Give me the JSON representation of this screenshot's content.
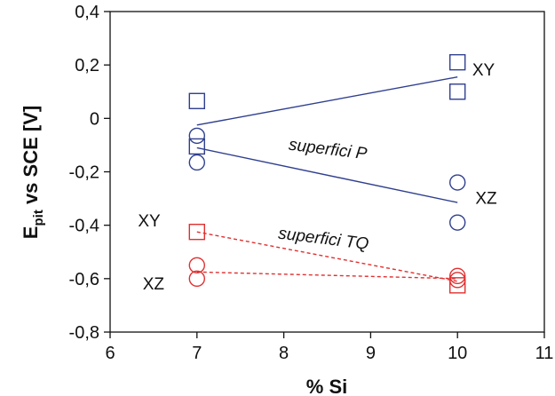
{
  "chart_data": {
    "type": "scatter",
    "title": "",
    "xlabel": "% Si",
    "ylabel_main": "E",
    "ylabel_sub": "pit",
    "ylabel_rest": " vs SCE [V]",
    "xlim": [
      6,
      11
    ],
    "ylim": [
      -0.8,
      0.4
    ],
    "xticks": [
      6,
      7,
      8,
      9,
      10,
      11
    ],
    "xtick_labels": [
      "6",
      "7",
      "8",
      "9",
      "10",
      "11"
    ],
    "yticks": [
      -0.8,
      -0.6,
      -0.4,
      -0.2,
      0,
      0.2,
      0.4
    ],
    "ytick_labels": [
      "-0,8",
      "-0,6",
      "-0,4",
      "-0,2",
      "0",
      "0,2",
      "0,4"
    ],
    "grid": false,
    "colors": {
      "blue": "#2f3f8f",
      "red": "#e03030"
    },
    "series": [
      {
        "color": "blue",
        "marker": "square",
        "x": [
          7,
          7,
          10,
          10
        ],
        "y": [
          0.065,
          -0.105,
          0.21,
          0.1
        ]
      },
      {
        "color": "blue",
        "marker": "circle",
        "x": [
          7,
          7,
          10,
          10
        ],
        "y": [
          -0.065,
          -0.165,
          -0.24,
          -0.39
        ]
      },
      {
        "color": "red",
        "marker": "square",
        "x": [
          7,
          10
        ],
        "y": [
          -0.425,
          -0.625
        ]
      },
      {
        "color": "red",
        "marker": "circle",
        "x": [
          7,
          7,
          10,
          10
        ],
        "y": [
          -0.55,
          -0.6,
          -0.59,
          -0.605
        ]
      }
    ],
    "trend_lines": [
      {
        "color": "blue",
        "style": "solid",
        "x": [
          7,
          10
        ],
        "y": [
          -0.025,
          0.155
        ]
      },
      {
        "color": "blue",
        "style": "solid",
        "x": [
          7,
          10
        ],
        "y": [
          -0.11,
          -0.315
        ]
      },
      {
        "color": "red",
        "style": "dashed",
        "x": [
          7,
          10
        ],
        "y": [
          -0.425,
          -0.61
        ]
      },
      {
        "color": "red",
        "style": "dashed",
        "x": [
          7,
          10
        ],
        "y": [
          -0.575,
          -0.6
        ]
      }
    ],
    "annotations": [
      {
        "text": "XY",
        "x": 10.3,
        "y": 0.16,
        "anchor": "middle",
        "style": "normal",
        "rotate": 0
      },
      {
        "text": "XZ",
        "x": 10.33,
        "y": -0.32,
        "anchor": "middle",
        "style": "normal",
        "rotate": 0
      },
      {
        "text": "XY",
        "x": 6.45,
        "y": -0.405,
        "anchor": "middle",
        "style": "normal",
        "rotate": 0
      },
      {
        "text": "XZ",
        "x": 6.5,
        "y": -0.64,
        "anchor": "middle",
        "style": "normal",
        "rotate": 0
      },
      {
        "text": "superfici P",
        "x": 8.5,
        "y": -0.135,
        "anchor": "middle",
        "style": "italic",
        "rotate": 7
      },
      {
        "text": "superfici TQ",
        "x": 8.45,
        "y": -0.47,
        "anchor": "middle",
        "style": "italic",
        "rotate": 7
      }
    ]
  }
}
